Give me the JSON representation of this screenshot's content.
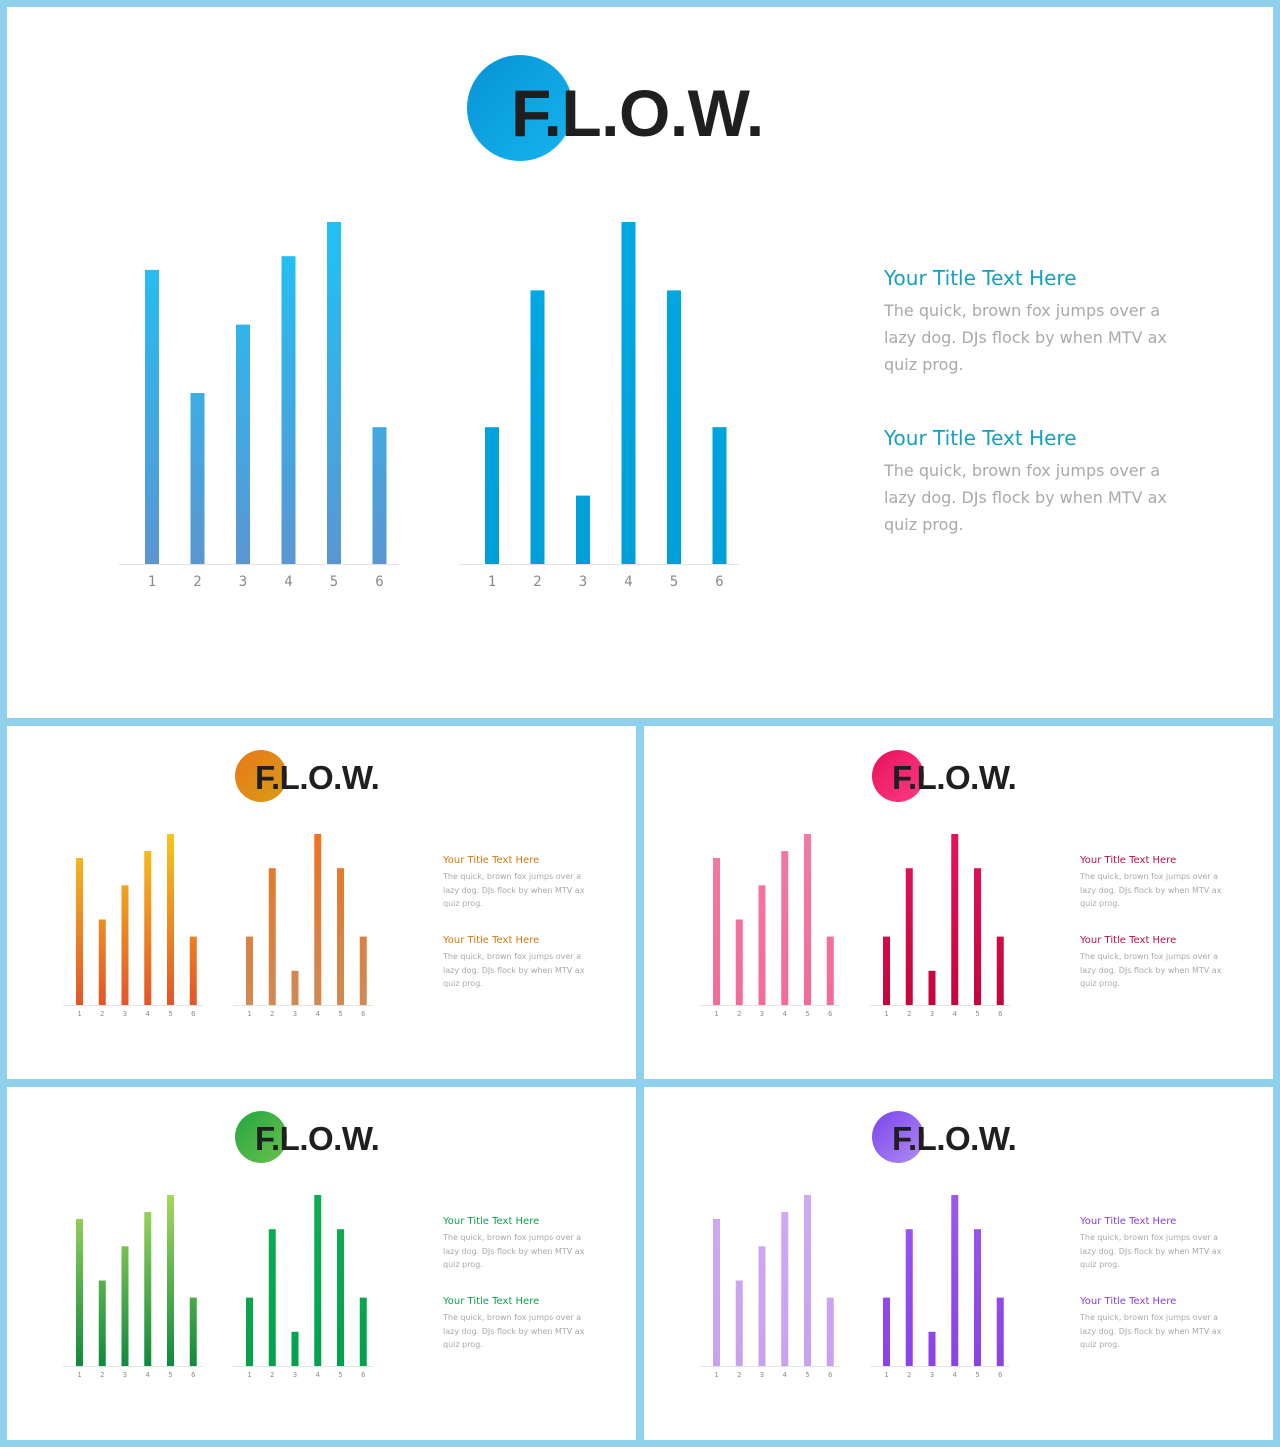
{
  "brand": "F.L.O.W.",
  "categories": [
    "1",
    "2",
    "3",
    "4",
    "5",
    "6"
  ],
  "slides": [
    {
      "name": "blue",
      "accent": "#00a3e0",
      "logo_gradient": [
        "#0693d6",
        "#16b4ef"
      ],
      "left_gradient": [
        "#5b96d2",
        "#1fc2f5"
      ],
      "right_gradient": [
        "#009fd9",
        "#00a9e2"
      ],
      "title_color": "#14a0c4",
      "blocks": [
        {
          "title": "Your Title Text Here",
          "lines": [
            "The quick, brown fox jumps over a",
            "lazy dog. DJs flock by when MTV ax",
            "quiz prog."
          ]
        },
        {
          "title": "Your Title Text Here",
          "lines": [
            "The quick, brown fox jumps over a",
            "lazy dog. DJs flock by when MTV ax",
            "quiz prog."
          ]
        }
      ]
    },
    {
      "name": "orange",
      "accent": "#e08a10",
      "logo_gradient": [
        "#e9781b",
        "#d79c14"
      ],
      "left_gradient": [
        "#e3552a",
        "#f6c51b"
      ],
      "right_gradient": [
        "#cf8a54",
        "#ec7421"
      ],
      "title_color": "#cf7a12",
      "blocks": [
        {
          "title": "Your Title Text Here",
          "lines": [
            "The quick, brown fox jumps over a",
            "lazy dog. DJs flock by when MTV ax",
            "quiz prog."
          ]
        },
        {
          "title": "Your Title Text Here",
          "lines": [
            "The quick, brown fox jumps over a",
            "lazy dog. DJs flock by when MTV ax",
            "quiz prog."
          ]
        }
      ]
    },
    {
      "name": "pink",
      "accent": "#f0206a",
      "logo_gradient": [
        "#e8125a",
        "#ff3a86"
      ],
      "left_gradient": [
        "#f26b9a",
        "#f27aa3"
      ],
      "right_gradient": [
        "#c4063c",
        "#e4135b"
      ],
      "title_color": "#b40f4c",
      "blocks": [
        {
          "title": "Your Title Text Here",
          "lines": [
            "The quick, brown fox jumps over a",
            "lazy dog. DJs flock by when MTV ax",
            "quiz prog."
          ]
        },
        {
          "title": "Your Title Text Here",
          "lines": [
            "The quick, brown fox jumps over a",
            "lazy dog. DJs flock by when MTV ax",
            "quiz prog."
          ]
        }
      ]
    },
    {
      "name": "green",
      "accent": "#2db84a",
      "logo_gradient": [
        "#25a544",
        "#6ac24a"
      ],
      "left_gradient": [
        "#0f8a3e",
        "#a6d85e"
      ],
      "right_gradient": [
        "#03a14e",
        "#10ad53"
      ],
      "title_color": "#0ea04c",
      "blocks": [
        {
          "title": "Your Title Text Here",
          "lines": [
            "The quick, brown fox jumps over a",
            "lazy dog. DJs flock by when MTV ax",
            "quiz prog."
          ]
        },
        {
          "title": "Your Title Text Here",
          "lines": [
            "The quick, brown fox jumps over a",
            "lazy dog. DJs flock by when MTV ax",
            "quiz prog."
          ]
        }
      ]
    },
    {
      "name": "purple",
      "accent": "#8e5cf0",
      "logo_gradient": [
        "#7a44e8",
        "#b08cf6"
      ],
      "left_gradient": [
        "#c8a2ef",
        "#cfa9f2"
      ],
      "right_gradient": [
        "#8a42e6",
        "#9b58ec"
      ],
      "title_color": "#8a3fd8",
      "blocks": [
        {
          "title": "Your Title Text Here",
          "lines": [
            "The quick, brown fox jumps over a",
            "lazy dog. DJs flock by when MTV ax",
            "quiz prog."
          ]
        },
        {
          "title": "Your Title Text Here",
          "lines": [
            "The quick, brown fox jumps over a",
            "lazy dog. DJs flock by when MTV ax",
            "quiz prog."
          ]
        }
      ]
    }
  ],
  "chart_data": [
    {
      "type": "bar",
      "categories": [
        "1",
        "2",
        "3",
        "4",
        "5",
        "6"
      ],
      "values": [
        86,
        50,
        70,
        90,
        100,
        40
      ],
      "ylim": [
        0,
        100
      ]
    },
    {
      "type": "bar",
      "categories": [
        "1",
        "2",
        "3",
        "4",
        "5",
        "6"
      ],
      "values": [
        40,
        80,
        20,
        100,
        80,
        40
      ],
      "ylim": [
        0,
        100
      ]
    }
  ]
}
